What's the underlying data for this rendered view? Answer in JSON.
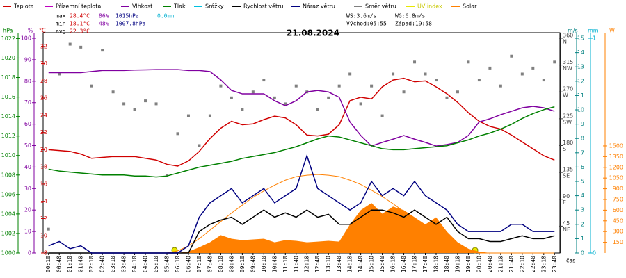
{
  "chart_data": {
    "type": "line",
    "title": "21.08.2024",
    "x_label": "čas",
    "categories": [
      "00:10",
      "00:40",
      "01:10",
      "01:40",
      "02:10",
      "02:40",
      "03:10",
      "03:40",
      "04:10",
      "04:40",
      "05:10",
      "05:40",
      "06:10",
      "06:40",
      "07:10",
      "07:40",
      "08:10",
      "08:40",
      "09:10",
      "09:40",
      "10:10",
      "10:40",
      "11:10",
      "11:40",
      "12:10",
      "12:40",
      "13:10",
      "13:40",
      "14:10",
      "14:40",
      "15:10",
      "15:40",
      "16:10",
      "16:40",
      "17:10",
      "17:40",
      "18:10",
      "18:40",
      "19:10",
      "19:40",
      "20:10",
      "20:40",
      "21:10",
      "21:40",
      "22:10",
      "22:40",
      "23:10",
      "23:40"
    ],
    "axes": [
      {
        "label": "hPa",
        "color": "#008000",
        "lim": [
          1000,
          1022.6
        ],
        "ticks": [
          1000,
          1002,
          1004,
          1006,
          1008,
          1010,
          1012,
          1014,
          1016,
          1018,
          1020,
          1022
        ]
      },
      {
        "label": "%",
        "color": "#8000a0",
        "lim": [
          0,
          102.6
        ],
        "ticks": [
          0,
          10,
          20,
          30,
          40,
          50,
          60,
          70,
          80,
          90,
          100
        ]
      },
      {
        "label": "°C",
        "color": "#d00000",
        "lim": [
          8,
          33.6
        ],
        "ticks": [
          8,
          10,
          12,
          14,
          16,
          18,
          20,
          22,
          24,
          26,
          28,
          30,
          32
        ]
      },
      {
        "color": "#404040",
        "lim": [
          0,
          369.3
        ],
        "ticks": [
          45,
          90,
          135,
          180,
          225,
          270,
          315,
          360
        ],
        "compass": [
          "NE",
          "E",
          "SE",
          "S",
          "SW",
          "W",
          "NW",
          "N"
        ]
      },
      {
        "label": "m/s",
        "color": "#008080",
        "lim": [
          0,
          15.39
        ],
        "ticks": [
          0,
          1,
          2,
          3,
          4,
          5,
          6,
          7,
          8,
          9,
          10,
          11,
          12,
          13,
          14,
          15
        ]
      },
      {
        "label": "mm",
        "color": "#00b0d0",
        "lim": [
          0,
          1.026
        ],
        "ticks": [
          0,
          1
        ]
      },
      {
        "label": "W",
        "color": "#ff8000",
        "lim": [
          0,
          3087
        ],
        "ticks": [
          150,
          300,
          450,
          600,
          750,
          900,
          1050,
          1200,
          1350,
          1500
        ]
      }
    ],
    "series": [
      {
        "name": "Teplota",
        "color": "#d00000",
        "axis": 2,
        "style": "line",
        "values": [
          20.0,
          19.9,
          19.8,
          19.5,
          19.0,
          19.1,
          19.2,
          19.2,
          19.2,
          19.0,
          18.8,
          18.3,
          18.1,
          18.7,
          19.8,
          21.3,
          22.5,
          23.3,
          22.9,
          23.0,
          23.5,
          23.9,
          23.7,
          22.9,
          21.7,
          21.6,
          21.8,
          22.9,
          25.7,
          26.1,
          25.9,
          27.3,
          28.1,
          28.3,
          27.9,
          28.0,
          27.3,
          26.5,
          25.5,
          24.3,
          23.3,
          22.7,
          22.4,
          21.7,
          20.9,
          20.1,
          19.3,
          18.8
        ]
      },
      {
        "name": "Přízemní teplota",
        "color": "#c000c0"
      },
      {
        "name": "Vlhkost",
        "color": "#8000a0",
        "axis": 1,
        "style": "line",
        "values": [
          84.0,
          84.0,
          84.0,
          84.0,
          84.5,
          85.0,
          85.0,
          85.0,
          85.2,
          85.3,
          85.4,
          85.4,
          85.4,
          85.0,
          85.0,
          84.5,
          80.6,
          75.7,
          74.1,
          74.1,
          74.1,
          70.9,
          68.6,
          70.9,
          75.0,
          75.7,
          75.0,
          72.5,
          61.0,
          54.7,
          49.8,
          51.5,
          53.0,
          54.7,
          53.0,
          51.5,
          49.8,
          50.5,
          51.5,
          54.7,
          61.0,
          62.5,
          64.4,
          66.0,
          67.6,
          68.3,
          67.6,
          66.0
        ]
      },
      {
        "name": "Tlak",
        "color": "#008000",
        "axis": 0,
        "style": "line",
        "values": [
          1008.6,
          1008.4,
          1008.3,
          1008.2,
          1008.1,
          1008.0,
          1008.0,
          1008.0,
          1007.9,
          1007.9,
          1007.8,
          1007.9,
          1008.2,
          1008.5,
          1008.8,
          1009.0,
          1009.2,
          1009.4,
          1009.7,
          1009.9,
          1010.1,
          1010.3,
          1010.6,
          1010.9,
          1011.3,
          1011.7,
          1012.0,
          1011.9,
          1011.6,
          1011.3,
          1011.0,
          1010.7,
          1010.6,
          1010.6,
          1010.7,
          1010.8,
          1010.9,
          1011.0,
          1011.3,
          1011.6,
          1012.0,
          1012.3,
          1012.7,
          1013.2,
          1013.8,
          1014.3,
          1014.7,
          1015.0
        ]
      },
      {
        "name": "Srážky",
        "color": "#00c0e0"
      },
      {
        "name": "Rychlost větru",
        "color": "#000000",
        "axis": 4,
        "style": "line",
        "values": [
          0,
          0,
          0,
          0,
          0,
          0,
          0,
          0,
          0,
          0,
          0,
          0,
          0,
          0,
          1.5,
          2.0,
          2.3,
          2.5,
          2.0,
          2.5,
          3.0,
          2.5,
          2.8,
          2.5,
          3.0,
          2.5,
          2.7,
          2.0,
          2.0,
          2.5,
          3.0,
          3.0,
          2.8,
          2.5,
          3.0,
          2.5,
          2.0,
          2.5,
          1.5,
          1.0,
          1.0,
          0.8,
          0.8,
          1.0,
          1.2,
          1.0,
          1.0,
          1.2
        ]
      },
      {
        "name": "Náraz větru",
        "color": "#000080",
        "axis": 4,
        "style": "line",
        "values": [
          0.5,
          0.8,
          0.3,
          0.5,
          0,
          0,
          0,
          0,
          0,
          0,
          0,
          0,
          0,
          0.5,
          2.5,
          3.5,
          4.0,
          4.5,
          3.5,
          4.0,
          4.5,
          3.5,
          4.0,
          4.5,
          6.8,
          4.5,
          4.0,
          3.5,
          3.0,
          3.5,
          5.0,
          4.0,
          4.5,
          4.0,
          5.0,
          4.0,
          3.5,
          3.0,
          2.0,
          1.5,
          1.5,
          1.5,
          1.5,
          2.0,
          2.0,
          1.5,
          1.5,
          1.5
        ]
      },
      {
        "name": "Směr větru",
        "color": "#808080",
        "axis": 3,
        "style": "points",
        "values": [
          40,
          300,
          350,
          345,
          280,
          340,
          270,
          250,
          240,
          255,
          250,
          130,
          200,
          230,
          180,
          230,
          280,
          260,
          240,
          270,
          290,
          260,
          250,
          280,
          270,
          240,
          260,
          280,
          300,
          250,
          280,
          230,
          300,
          270,
          320,
          300,
          290,
          260,
          270,
          320,
          290,
          310,
          280,
          330,
          300,
          310,
          290,
          320
        ]
      },
      {
        "name": "UV index",
        "color": "#e8e800"
      },
      {
        "name": "Solar",
        "color": "#ff8000",
        "axis": 6,
        "style": "area",
        "values": [
          0,
          0,
          0,
          0,
          0,
          0,
          0,
          0,
          0,
          0,
          0,
          0,
          0,
          20,
          80,
          150,
          250,
          200,
          180,
          190,
          200,
          150,
          180,
          170,
          150,
          160,
          170,
          160,
          400,
          600,
          700,
          550,
          650,
          600,
          500,
          400,
          500,
          300,
          150,
          60,
          20,
          0,
          0,
          0,
          0,
          0,
          0,
          0
        ],
        "max_values": [
          0,
          0,
          0,
          0,
          0,
          0,
          0,
          0,
          0,
          0,
          0,
          0,
          30,
          100,
          200,
          320,
          440,
          560,
          670,
          780,
          870,
          950,
          1020,
          1070,
          1090,
          1100,
          1090,
          1070,
          1020,
          960,
          880,
          790,
          690,
          580,
          470,
          360,
          260,
          170,
          90,
          30,
          0,
          0,
          0,
          0,
          0,
          0,
          0,
          0
        ]
      }
    ],
    "stats": [
      {
        "label": "max",
        "items": [
          "28.4°C",
          "86%",
          "1015hPa",
          "0.0mm"
        ]
      },
      {
        "label": "min",
        "items": [
          "18.1°C",
          "48%",
          "1007.8hPa"
        ]
      },
      {
        "label": "avg",
        "items": [
          "22.3°C"
        ]
      }
    ],
    "wind": [
      "WS:3.6m/s",
      "WG:6.8m/s",
      "Východ:05:55",
      "Západ:19:58"
    ]
  }
}
